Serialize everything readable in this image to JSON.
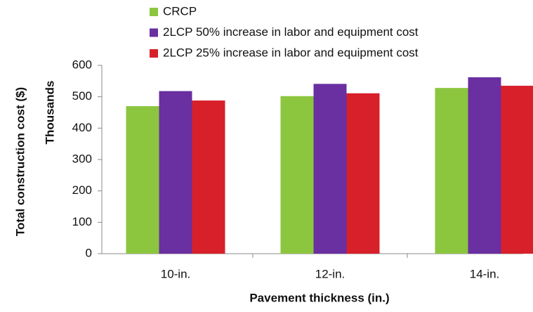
{
  "chart_data": {
    "type": "bar",
    "x_label": "Pavement thickness (in.)",
    "y_label": "Total construction cost ($)",
    "y_unit_label": "Thousands",
    "categories": [
      "10-in.",
      "12-in.",
      "14-in."
    ],
    "series": [
      {
        "name": "CRCP",
        "color": "#8cc63f",
        "values": [
          470,
          502,
          528
        ]
      },
      {
        "name": "2LCP 50% increase in labor and equipment cost",
        "color": "#6a2fa0",
        "values": [
          518,
          541,
          562
        ]
      },
      {
        "name": "2LCP 25% increase in labor and equipment cost",
        "color": "#d8202a",
        "values": [
          488,
          511,
          535
        ]
      }
    ],
    "ylim": [
      0,
      600
    ],
    "yticks": [
      0,
      100,
      200,
      300,
      400,
      500,
      600
    ]
  }
}
